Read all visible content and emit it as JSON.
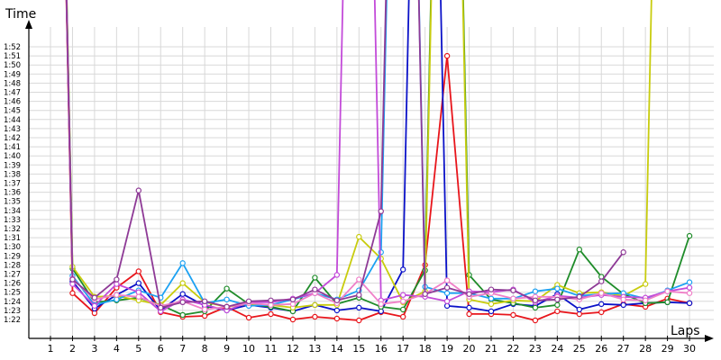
{
  "chart_data": {
    "type": "line",
    "xlabel": "Laps",
    "ylabel": "Time",
    "x": [
      1,
      2,
      3,
      4,
      5,
      6,
      7,
      8,
      9,
      10,
      11,
      12,
      13,
      14,
      15,
      16,
      17,
      18,
      19,
      20,
      21,
      22,
      23,
      24,
      25,
      26,
      27,
      28,
      29,
      30
    ],
    "x_tick_labels": [
      "1",
      "2",
      "3",
      "4",
      "5",
      "6",
      "7",
      "8",
      "9",
      "10",
      "11",
      "12",
      "13",
      "14",
      "15",
      "16",
      "17",
      "18",
      "19",
      "20",
      "21",
      "22",
      "23",
      "24",
      "25",
      "26",
      "27",
      "28",
      "29",
      "30"
    ],
    "y_tick_labels": [
      "1:22",
      "1:23",
      "1:24",
      "1:25",
      "1:26",
      "1:27",
      "1:28",
      "1:29",
      "1:30",
      "1:31",
      "1:32",
      "1:33",
      "1:34",
      "1:35",
      "1:36",
      "1:37",
      "1:38",
      "1:39",
      "1:40",
      "1:41",
      "1:42",
      "1:43",
      "1:44",
      "1:45",
      "1:46",
      "1:47",
      "1:48",
      "1:49",
      "1:50",
      "1:51",
      "1:52"
    ],
    "ylim_seconds": [
      81,
      82.9
    ],
    "y_units": "seconds",
    "grid": true,
    "series": [
      {
        "color": "#e8151b",
        "values": [
          200,
          84.9,
          82.7,
          85.5,
          87.3,
          82.8,
          82.3,
          82.4,
          83.4,
          82.2,
          82.6,
          82.0,
          82.3,
          82.1,
          81.9,
          82.8,
          82.3,
          88.0,
          111.0,
          82.6,
          82.6,
          82.5,
          81.9,
          82.9,
          82.6,
          82.8,
          83.7,
          83.4,
          84.3,
          83.8
        ]
      },
      {
        "color": "#0b12c8",
        "values": [
          200,
          86.2,
          83.2,
          84.7,
          86.0,
          83.0,
          84.8,
          83.5,
          83.0,
          83.6,
          83.3,
          82.9,
          83.6,
          83.0,
          83.3,
          82.9,
          87.5,
          200,
          83.5,
          83.3,
          82.9,
          83.7,
          83.5,
          84.8,
          83.1,
          83.7,
          83.6,
          83.8,
          83.9,
          83.8
        ]
      },
      {
        "color": "#1f8c2a",
        "values": [
          200,
          87.6,
          83.9,
          84.1,
          84.4,
          83.6,
          82.5,
          82.9,
          85.4,
          83.7,
          83.4,
          82.9,
          86.6,
          83.7,
          84.4,
          83.4,
          83.1,
          87.4,
          200,
          86.9,
          84.2,
          83.8,
          83.3,
          83.6,
          89.7,
          86.7,
          84.8,
          83.8,
          83.9,
          91.2
        ]
      },
      {
        "color": "#c8cc0e",
        "values": [
          200,
          87.8,
          84.5,
          84.6,
          84.1,
          83.6,
          86.0,
          83.9,
          83.4,
          83.7,
          83.6,
          83.3,
          83.6,
          83.6,
          91.1,
          88.7,
          83.9,
          85.1,
          200,
          84.2,
          83.7,
          84.1,
          84.0,
          85.8,
          84.9,
          85.0,
          84.6,
          85.9,
          200,
          200
        ]
      },
      {
        "color": "#1ca1f2",
        "values": [
          200,
          86.8,
          83.6,
          84.2,
          85.2,
          84.4,
          88.2,
          83.8,
          84.2,
          83.5,
          83.6,
          84.2,
          84.9,
          84.2,
          85.2,
          89.4,
          200,
          85.6,
          84.9,
          84.9,
          84.3,
          84.3,
          85.1,
          85.4,
          84.6,
          84.8,
          84.9,
          84.3,
          85.2,
          86.1
        ]
      },
      {
        "color": "#c34bd9",
        "values": [
          200,
          85.9,
          83.5,
          85.9,
          85.0,
          82.9,
          84.2,
          83.6,
          83.0,
          83.9,
          83.9,
          84.3,
          84.9,
          86.9,
          200,
          84.1,
          84.7,
          84.5,
          84.0,
          85.1,
          85.0,
          85.3,
          83.9,
          84.6,
          84.4,
          84.7,
          84.5,
          84.4,
          85.1,
          85.5
        ]
      },
      {
        "color": "#f080c8",
        "values": [
          200,
          86.5,
          84.2,
          84.7,
          84.5,
          83.5,
          84.0,
          83.1,
          83.4,
          83.8,
          83.6,
          83.7,
          84.9,
          83.8,
          86.4,
          83.7,
          84.0,
          84.8,
          86.3,
          84.5,
          84.9,
          84.3,
          84.5,
          84.5,
          84.2,
          84.9,
          84.2,
          84.1,
          85.1,
          84.9
        ]
      },
      {
        "color": "#8e3a96",
        "values": [
          200,
          86.4,
          84.4,
          86.4,
          96.2,
          83.3,
          83.9,
          84.0,
          83.4,
          84.0,
          84.1,
          84.2,
          85.3,
          84.1,
          84.7,
          93.9,
          200,
          84.8,
          85.5,
          84.8,
          85.3,
          85.2,
          84.1,
          84.2,
          84.5,
          86.2,
          89.4,
          null,
          null,
          null
        ]
      }
    ]
  }
}
